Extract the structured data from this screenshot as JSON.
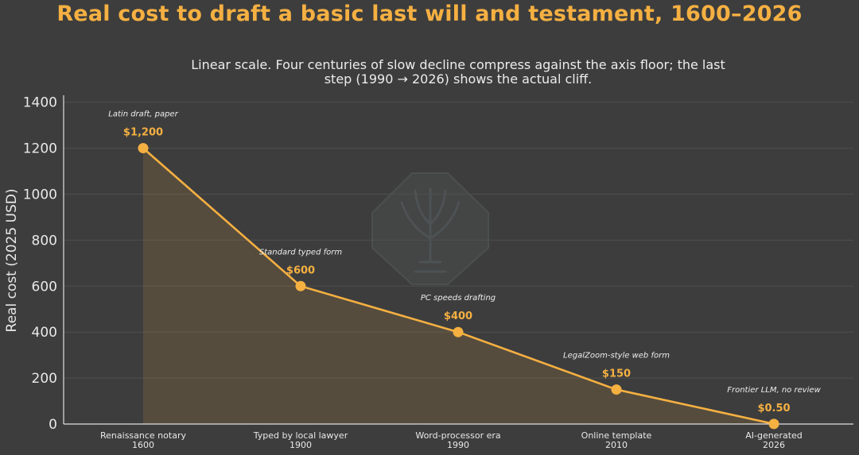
{
  "colors": {
    "background": "#3d3d3d",
    "accent": "#f5b042",
    "text": "#e8e8e8"
  },
  "chart_data": {
    "type": "line",
    "title": "Real cost to draft a basic last will and testament, 1600–2026",
    "subtitle_lines": [
      "Linear scale. Four centuries of slow decline compress against the axis floor; the last",
      "step (1990 → 2026) shows the actual cliff."
    ],
    "xlabel": "",
    "ylabel": "Real cost (2025 USD)",
    "scale": "linear",
    "ylim": [
      0,
      1430
    ],
    "yticks": [
      0,
      200,
      400,
      600,
      800,
      1000,
      1200,
      1400
    ],
    "grid": true,
    "fill_under_line": true,
    "categories": [
      {
        "name": "Renaissance notary",
        "year": "1600"
      },
      {
        "name": "Typed by local lawyer",
        "year": "1900"
      },
      {
        "name": "Word-processor era",
        "year": "1990"
      },
      {
        "name": "Online template",
        "year": "2010"
      },
      {
        "name": "AI-generated",
        "year": "2026"
      }
    ],
    "values": [
      1200,
      600,
      400,
      150,
      0.5
    ],
    "value_labels": [
      "$1,200",
      "$600",
      "$400",
      "$150",
      "$0.50"
    ],
    "annotations": [
      "Latin draft, paper",
      "Standard typed form",
      "PC speeds drafting",
      "LegalZoom-style web form",
      "Frontier LLM, no review"
    ]
  }
}
